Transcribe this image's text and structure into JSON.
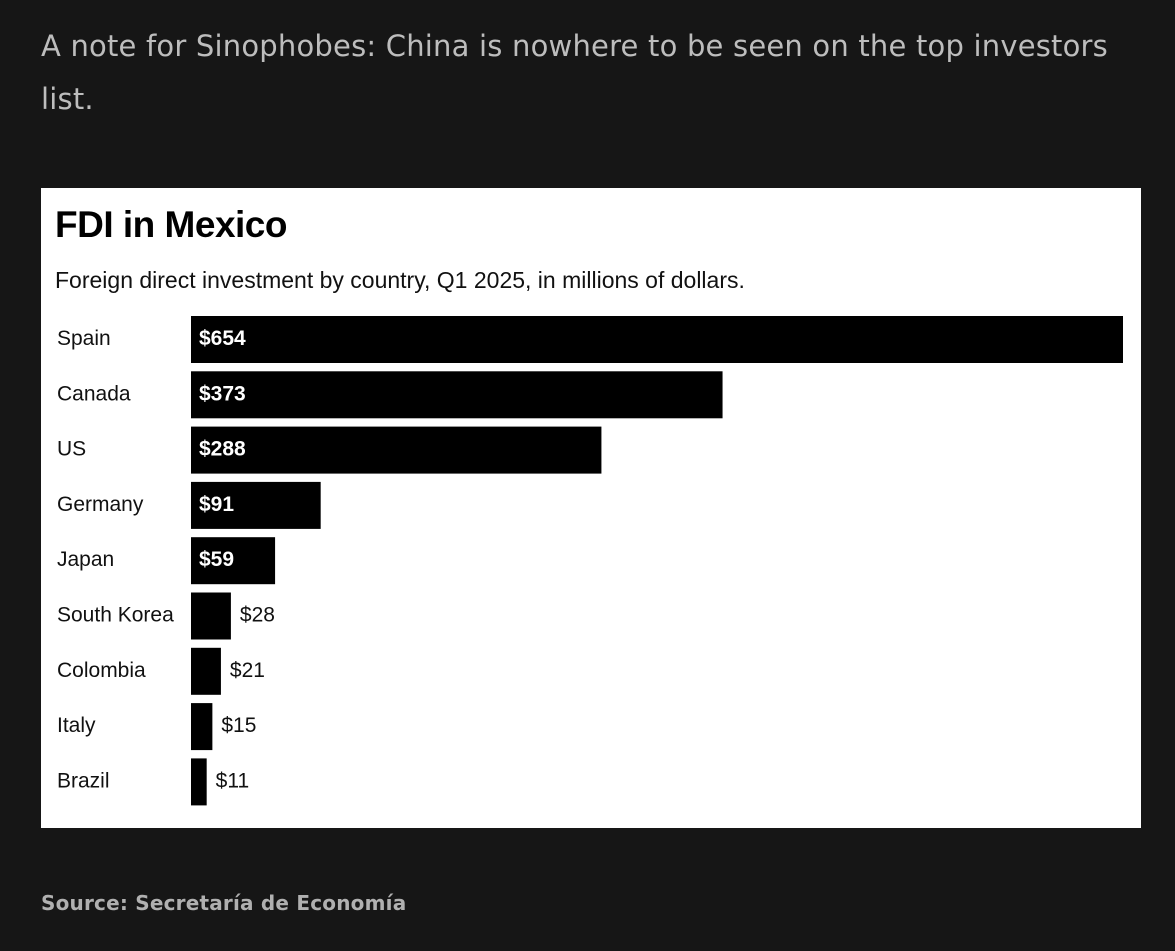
{
  "post": {
    "text": "A note for Sinophobes: China is nowhere to be seen on the top investors list."
  },
  "source": {
    "text": "Source: Secretaría de Economía"
  },
  "colors": {
    "background": "#161616",
    "card": "#ffffff",
    "bar": "#000000"
  },
  "chart_data": {
    "type": "bar",
    "orientation": "horizontal",
    "title": "FDI in Mexico",
    "subtitle": "Foreign direct investment by country, Q1 2025, in millions of dollars.",
    "xlabel": "",
    "ylabel": "",
    "grid": false,
    "categories": [
      "Spain",
      "Canada",
      "US",
      "Germany",
      "Japan",
      "South Korea",
      "Colombia",
      "Italy",
      "Brazil"
    ],
    "values": [
      654,
      373,
      288,
      91,
      59,
      28,
      21,
      15,
      11
    ],
    "value_labels": [
      "$654",
      "$373",
      "$288",
      "$91",
      "$59",
      "$28",
      "$21",
      "$15",
      "$11"
    ],
    "xlim": [
      0,
      654
    ]
  }
}
